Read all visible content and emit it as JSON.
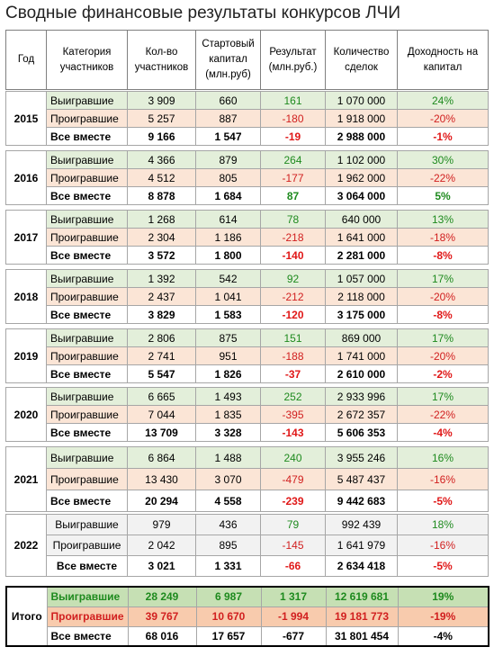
{
  "title": "Сводные финансовые результаты конкурсов ЛЧИ",
  "headers": [
    "Год",
    "Категория участников",
    "Кол-во участников",
    "Стартовый капитал (млн.руб)",
    "Результат (млн.руб.)",
    "Количество сделок",
    "Доходность на капитал"
  ],
  "groups": [
    {
      "year": "2015",
      "rows": [
        [
          "Выигравшие",
          "3 909",
          "660",
          "161",
          "1 070 000",
          "24%"
        ],
        [
          "Проигравшие",
          "5 257",
          "887",
          "-180",
          "1 918 000",
          "-20%"
        ],
        [
          "Все вместе",
          "9 166",
          "1 547",
          "-19",
          "2 988 000",
          "-1%"
        ]
      ]
    },
    {
      "year": "2016",
      "rows": [
        [
          "Выигравшие",
          "4 366",
          "879",
          "264",
          "1 102 000",
          "30%"
        ],
        [
          "Проигравшие",
          "4 512",
          "805",
          "-177",
          "1 962 000",
          "-22%"
        ],
        [
          "Все вместе",
          "8 878",
          "1 684",
          "87",
          "3 064 000",
          "5%"
        ]
      ]
    },
    {
      "year": "2017",
      "rows": [
        [
          "Выигравшие",
          "1 268",
          "614",
          "78",
          "640 000",
          "13%"
        ],
        [
          "Проигравшие",
          "2 304",
          "1 186",
          "-218",
          "1 641 000",
          "-18%"
        ],
        [
          "Все вместе",
          "3 572",
          "1 800",
          "-140",
          "2 281 000",
          "-8%"
        ]
      ]
    },
    {
      "year": "2018",
      "rows": [
        [
          "Выигравшие",
          "1 392",
          "542",
          "92",
          "1 057 000",
          "17%"
        ],
        [
          "Проигравшие",
          "2 437",
          "1 041",
          "-212",
          "2 118 000",
          "-20%"
        ],
        [
          "Все вместе",
          "3 829",
          "1 583",
          "-120",
          "3 175 000",
          "-8%"
        ]
      ]
    },
    {
      "year": "2019",
      "rows": [
        [
          "Выигравшие",
          "2 806",
          "875",
          "151",
          "869 000",
          "17%"
        ],
        [
          "Проигравшие",
          "2 741",
          "951",
          "-188",
          "1 741 000",
          "-20%"
        ],
        [
          "Все вместе",
          "5 547",
          "1 826",
          "-37",
          "2 610 000",
          "-2%"
        ]
      ]
    },
    {
      "year": "2020",
      "rows": [
        [
          "Выигравшие",
          "6 665",
          "1 493",
          "252",
          "2 933 996",
          "17%"
        ],
        [
          "Проигравшие",
          "7 044",
          "1 835",
          "-395",
          "2 672 357",
          "-22%"
        ],
        [
          "Все вместе",
          "13 709",
          "3 328",
          "-143",
          "5 606 353",
          "-4%"
        ]
      ]
    },
    {
      "year": "2021",
      "rows": [
        [
          "Выигравшие",
          "6 864",
          "1 488",
          "240",
          "3 955 246",
          "16%"
        ],
        [
          "Проигравшие",
          "13 430",
          "3 070",
          "-479",
          "5 487 437",
          "-16%"
        ],
        [
          "Все вместе",
          "20 294",
          "4 558",
          "-239",
          "9 442 683",
          "-5%"
        ]
      ]
    },
    {
      "year": "2022",
      "rows": [
        [
          "Выигравшие",
          "979",
          "436",
          "79",
          "992 439",
          "18%"
        ],
        [
          "Проигравшие",
          "2 042",
          "895",
          "-145",
          "1 641 979",
          "-16%"
        ],
        [
          "Все вместе",
          "3 021",
          "1 331",
          "-66",
          "2 634 418",
          "-5%"
        ]
      ]
    },
    {
      "year": "Итого",
      "rows": [
        [
          "Выигравшие",
          "28 249",
          "6 987",
          "1 317",
          "12 619 681",
          "19%"
        ],
        [
          "Проигравшие",
          "39 767",
          "10 670",
          "-1 994",
          "19 181 773",
          "-19%"
        ],
        [
          "Все вместе",
          "68 016",
          "17 657",
          "-677",
          "31 801 454",
          "-4%"
        ]
      ]
    }
  ]
}
